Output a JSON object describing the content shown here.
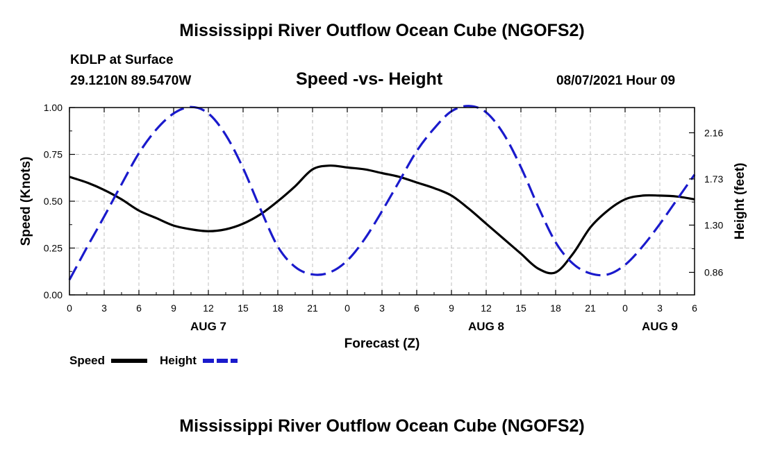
{
  "page": {
    "title_top": "Mississippi River Outflow Ocean Cube (NGOFS2)",
    "title_bottom": "Mississippi River Outflow Ocean Cube (NGOFS2)",
    "station": "KDLP at Surface",
    "coords": "29.1210N  89.5470W",
    "subtitle": "Speed -vs- Height",
    "datetime": "08/07/2021 Hour 09"
  },
  "colors": {
    "speed": "#000000",
    "height": "#1a1acc",
    "grid": "#bfbfbf"
  },
  "chart_data": {
    "type": "line",
    "title": "Speed -vs- Height",
    "xlabel": "Forecast (Z)",
    "ylabel": "Speed (Knots)",
    "y2label": "Height (feet)",
    "xlim": [
      0,
      54
    ],
    "ylim": [
      0,
      1
    ],
    "y2lim": [
      0.65,
      2.395
    ],
    "x_ticks": [
      0,
      3,
      6,
      9,
      12,
      15,
      18,
      21,
      24,
      27,
      30,
      33,
      36,
      39,
      42,
      45,
      48,
      51,
      54
    ],
    "x_tick_labels": [
      "0",
      "3",
      "6",
      "9",
      "12",
      "15",
      "18",
      "21",
      "0",
      "3",
      "6",
      "9",
      "12",
      "15",
      "18",
      "21",
      "0",
      "3",
      "6"
    ],
    "date_labels": [
      {
        "x": 12,
        "label": "AUG 7"
      },
      {
        "x": 36,
        "label": "AUG 8"
      },
      {
        "x": 51,
        "label": "AUG 9"
      }
    ],
    "y_ticks": [
      0,
      0.25,
      0.5,
      0.75,
      1.0
    ],
    "y_tick_labels": [
      "0.00",
      "0.25",
      "0.50",
      "0.75",
      "1.00"
    ],
    "y2_ticks": [
      0.86,
      1.3,
      1.73,
      2.16
    ],
    "y2_tick_labels": [
      "0.86",
      "1.30",
      "1.73",
      "2.16"
    ],
    "grid": true,
    "legend": [
      {
        "name": "Speed",
        "style": "solid"
      },
      {
        "name": "Height",
        "style": "dashed"
      }
    ],
    "series": [
      {
        "name": "Speed",
        "axis": "left",
        "style": "solid",
        "x": [
          0,
          1.5,
          3,
          4.5,
          6,
          7.5,
          9,
          10.5,
          12,
          13.5,
          15,
          16.5,
          18,
          19.5,
          21,
          22.5,
          24,
          25.5,
          27,
          28.5,
          30,
          31.5,
          33,
          34.5,
          36,
          37.5,
          39,
          40.5,
          42,
          43.5,
          45,
          46.5,
          48,
          49.5,
          51,
          52.5,
          54
        ],
        "values": [
          0.63,
          0.6,
          0.56,
          0.51,
          0.45,
          0.41,
          0.37,
          0.35,
          0.34,
          0.35,
          0.38,
          0.43,
          0.5,
          0.58,
          0.67,
          0.69,
          0.68,
          0.67,
          0.65,
          0.63,
          0.6,
          0.57,
          0.53,
          0.46,
          0.38,
          0.3,
          0.22,
          0.14,
          0.12,
          0.22,
          0.36,
          0.45,
          0.51,
          0.53,
          0.53,
          0.525,
          0.51
        ]
      },
      {
        "name": "Height",
        "axis": "right",
        "style": "dashed",
        "x": [
          0,
          1.5,
          3,
          4.5,
          6,
          7.5,
          9,
          10.5,
          12,
          13.5,
          15,
          16.5,
          18,
          19.5,
          21,
          22.5,
          24,
          25.5,
          27,
          28.5,
          30,
          31.5,
          33,
          34.5,
          36,
          37.5,
          39,
          40.5,
          42,
          43.5,
          45,
          46.5,
          48,
          49.5,
          51,
          52.5,
          54
        ],
        "values": [
          0.79,
          1.09,
          1.38,
          1.68,
          1.97,
          2.19,
          2.34,
          2.4,
          2.34,
          2.14,
          1.83,
          1.45,
          1.1,
          0.91,
          0.84,
          0.86,
          0.97,
          1.17,
          1.43,
          1.71,
          1.99,
          2.2,
          2.36,
          2.41,
          2.35,
          2.15,
          1.84,
          1.47,
          1.14,
          0.94,
          0.85,
          0.84,
          0.93,
          1.1,
          1.31,
          1.54,
          1.77
        ]
      }
    ]
  }
}
